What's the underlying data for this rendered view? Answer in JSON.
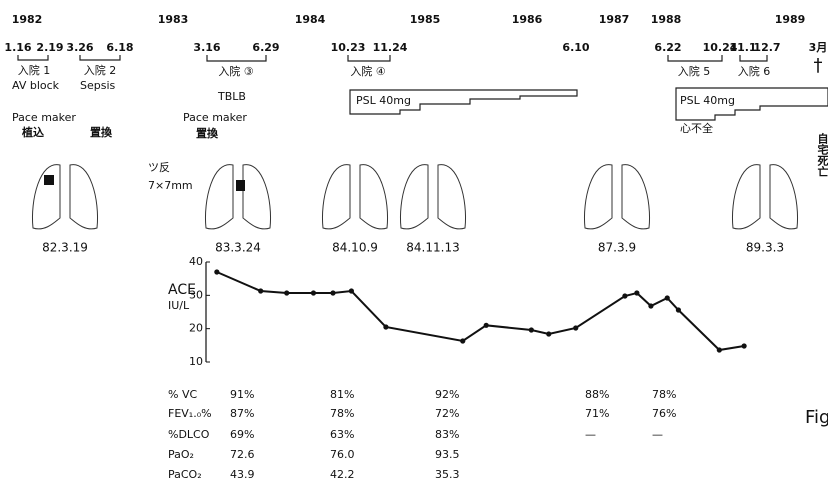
{
  "years": [
    1982,
    1983,
    1984,
    1985,
    1986,
    1987,
    1988,
    1989
  ],
  "admissions": [
    {
      "start": "1.16",
      "end": "2.19",
      "label": "入院 1",
      "note": "AV block"
    },
    {
      "start": "3.26",
      "end": "6.18",
      "label": "入院 2",
      "note": "Sepsis"
    },
    {
      "start": "3.16",
      "end": "6.29",
      "label": "入院 ③",
      "note": "TBLB"
    },
    {
      "start": "10.23",
      "end": "11.24",
      "label": "入院 ④"
    },
    {
      "start": "6.22",
      "end": "10.24",
      "label": "入院 5"
    },
    {
      "start": "11.1",
      "end": "12.7",
      "label": "入院 6"
    }
  ],
  "psl": {
    "labels": [
      "PSL 40mg",
      "PSL 40mg"
    ],
    "end_date": "6.10"
  },
  "heart_failure": "心不全",
  "death": {
    "month": "3月",
    "mark": "†",
    "text": "自宅死亡"
  },
  "pacemaker": [
    {
      "label": "Pace maker",
      "actions": [
        "植込",
        "置換"
      ]
    },
    {
      "label": "Pace maker",
      "actions": [
        "置換"
      ]
    }
  ],
  "tuberculin": {
    "label": "ツ反",
    "result": "7×7mm"
  },
  "lung_dates": [
    "82.3.19",
    "83.3.24",
    "84.10.9",
    "84.11.13",
    "87.3.9",
    "89.3.3"
  ],
  "chart_data": {
    "type": "line",
    "y_label": "ACE",
    "y_unit": "IU/L",
    "x": [
      1983.32,
      1983.64,
      1983.83,
      1984.03,
      1984.2,
      1984.36,
      1984.66,
      1985.37,
      1985.6,
      1986.05,
      1986.25,
      1986.56,
      1987.21,
      1987.44,
      1987.71,
      1988.01,
      1988.1,
      1988.43,
      1988.63
    ],
    "series": [
      {
        "name": "ACE",
        "color": "#111111",
        "values": [
          37,
          31.3,
          30.7,
          30.7,
          30.7,
          31.3,
          20.5,
          16.3,
          21,
          19.6,
          18.4,
          20.2,
          29.8,
          30.7,
          26.8,
          29.2,
          25.6,
          13.6,
          14.8
        ]
      }
    ],
    "ylim": [
      10,
      40
    ],
    "yticks": [
      10,
      20,
      30,
      40
    ]
  },
  "table": {
    "rows": [
      {
        "label": "% VC",
        "cells": [
          "91%",
          "81%",
          "92%",
          "88%",
          "78%"
        ]
      },
      {
        "label": "FEV₁.₀%",
        "cells": [
          "87%",
          "78%",
          "72%",
          "71%",
          "76%"
        ]
      },
      {
        "label": "%DLCO",
        "cells": [
          "69%",
          "63%",
          "83%",
          "—",
          "—"
        ]
      },
      {
        "label": "PaO₂",
        "cells": [
          "72.6",
          "76.0",
          "93.5"
        ]
      },
      {
        "label": "PaCO₂",
        "cells": [
          "43.9",
          "42.2",
          "35.3"
        ]
      }
    ]
  },
  "figure_label": "Fig"
}
